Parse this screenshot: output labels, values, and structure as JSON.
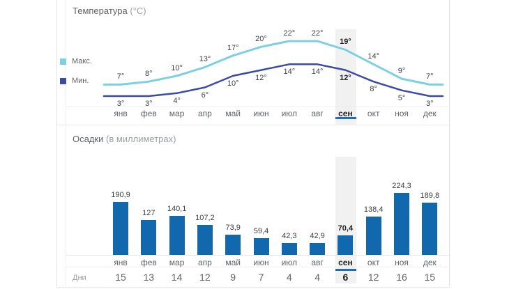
{
  "temperature": {
    "title": "Температура",
    "unit_suffix": "(°C)",
    "legend": [
      {
        "name": "Макс.",
        "swatch_color": "#45b7e0"
      },
      {
        "name": "Мин.",
        "swatch_color": "#2b3e9d"
      }
    ]
  },
  "precipitation": {
    "title": "Осадки",
    "unit_suffix": "(в миллиметрах)",
    "days_label": "Дни"
  },
  "months": [
    "янв",
    "фев",
    "мар",
    "апр",
    "май",
    "июн",
    "июл",
    "авг",
    "сен",
    "окт",
    "ноя",
    "дек"
  ],
  "selected_month_index": 8,
  "chart_data": [
    {
      "type": "line",
      "title": "Температура (°C)",
      "categories": [
        "янв",
        "фев",
        "мар",
        "апр",
        "май",
        "июн",
        "июл",
        "авг",
        "сен",
        "окт",
        "ноя",
        "дек"
      ],
      "series": [
        {
          "name": "Макс.",
          "values": [
            7,
            8,
            10,
            13,
            17,
            20,
            22,
            22,
            19,
            14,
            9,
            7
          ],
          "color": "#7dcfe2"
        },
        {
          "name": "Мин.",
          "values": [
            3,
            3,
            4,
            6,
            10,
            12,
            14,
            14,
            12,
            8,
            5,
            3
          ],
          "color": "#3b4ba1"
        }
      ],
      "unit": "°",
      "highlighted_category": "сен",
      "legend_position": "left",
      "grid": false
    },
    {
      "type": "bar",
      "title": "Осадки (в миллиметрах)",
      "categories": [
        "янв",
        "фев",
        "мар",
        "апр",
        "май",
        "июн",
        "июл",
        "авг",
        "сен",
        "окт",
        "ноя",
        "дек"
      ],
      "values": [
        190.9,
        127,
        140.1,
        107.2,
        73.9,
        59.4,
        42.3,
        42.9,
        70.4,
        138.4,
        224.3,
        189.8
      ],
      "value_labels": [
        "190,9",
        "127",
        "140,1",
        "107,2",
        "73,9",
        "59,4",
        "42,3",
        "42,9",
        "70,4",
        "138,4",
        "224,3",
        "189,8"
      ],
      "days": [
        15,
        13,
        14,
        12,
        9,
        7,
        4,
        4,
        6,
        12,
        16,
        15
      ],
      "highlighted_category": "сен",
      "grid": false
    }
  ],
  "colors": {
    "bar_blue": "#1268ac",
    "accent_blue": "#1e6fb4",
    "max_line": "#7dcfe2",
    "min_line": "#3b4ba1",
    "highlight_band": "#f1f1f1",
    "border": "#e5e5e5"
  }
}
